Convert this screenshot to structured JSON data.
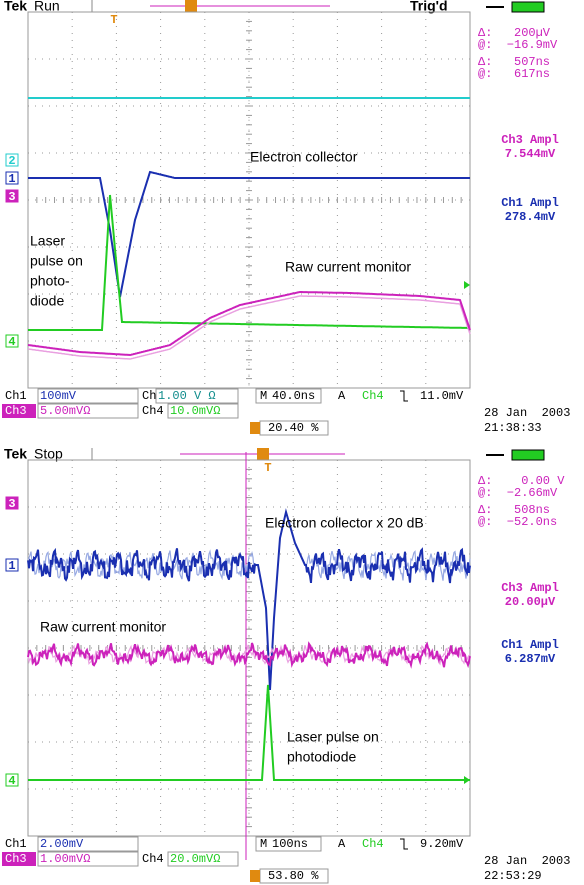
{
  "screens": [
    {
      "brand": "Tek",
      "state": "Run",
      "trigger": "Trig'd",
      "trigger_marker": "T",
      "cursor": [
        "Δ:   200µV",
        "@:  −16.9mV",
        "Δ:   507ns",
        "@:   617ns"
      ],
      "measurements": [
        {
          "label": "Ch3 Ampl",
          "value": "7.544mV"
        },
        {
          "label": "Ch1 Ampl",
          "value": "278.4mV"
        }
      ],
      "channel_markers": [
        "2",
        "1",
        "3",
        "4"
      ],
      "annotations": [
        "Electron collector",
        "Laser",
        "pulse on",
        "photo-",
        "diode",
        "Raw current monitor"
      ],
      "settings": [
        "Ch1",
        "100mV",
        "Ch2",
        "1.00 V Ω",
        "M",
        "40.0ns",
        "A",
        "Ch4",
        "11.0mV",
        "Ch3",
        "5.00mVΩ",
        "Ch4",
        "10.0mVΩ",
        "20.40 %"
      ],
      "date": "28 Jan  2003",
      "time": "21:38:33"
    },
    {
      "brand": "Tek",
      "state": "Stop",
      "trigger_marker": "T",
      "cursor": [
        "Δ:    0.00 V",
        "@:  −2.66mV",
        "Δ:   508ns",
        "@:  −52.0ns"
      ],
      "measurements": [
        {
          "label": "Ch3 Ampl",
          "value": "20.00µV"
        },
        {
          "label": "Ch1 Ampl",
          "value": "6.287mV"
        }
      ],
      "channel_markers": [
        "3",
        "1",
        "4"
      ],
      "annotations": [
        "Electron collector x 20 dB",
        "Raw current monitor",
        "Laser pulse on",
        "photodiode"
      ],
      "settings": [
        "Ch1",
        "2.00mV",
        "M",
        "100ns",
        "A",
        "Ch4",
        "9.20mV",
        "Ch3",
        "1.00mVΩ",
        "Ch4",
        "20.0mVΩ",
        "53.80 %"
      ],
      "date": "28 Jan  2003",
      "time": "22:53:29"
    }
  ]
}
